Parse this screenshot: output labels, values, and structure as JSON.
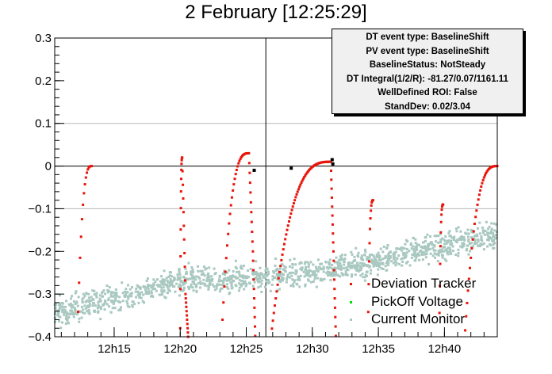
{
  "title": "2 February [12:25:29]",
  "stats": [
    "DT event type: BaselineShift",
    "PV event type: BaselineShift",
    "BaselineStatus: NotSteady",
    "DT Integral(1/2/R): -81.27/0.07/1161.11",
    "WellDefined ROI: False",
    "StandDev: 0.02/3.04"
  ],
  "chart_data": {
    "type": "scatter",
    "title": "2 February [12:25:29]",
    "xlabel": "",
    "ylabel": "",
    "x_unit": "minutes",
    "xlim": [
      10.5,
      44.0
    ],
    "ylim": [
      -0.4,
      0.3
    ],
    "x_ticks": [
      "12h15",
      "12h20",
      "12h25",
      "12h30",
      "12h35",
      "12h40"
    ],
    "x_tick_minutes": [
      15,
      20,
      25,
      30,
      35,
      40
    ],
    "y_ticks": [
      -0.4,
      -0.3,
      -0.2,
      -0.1,
      0,
      0.1,
      0.2,
      0.3
    ],
    "y_tick_labels": [
      "−0.4",
      "−0.3",
      "−0.2",
      "−0.1",
      "0",
      "0.1",
      "0.2",
      "0.3"
    ],
    "grid_lines_y": [
      -0.1,
      0.1
    ],
    "reference_lines": {
      "y": 0,
      "x": 26.48
    },
    "legend_position": "bottom-right",
    "series": [
      {
        "name": "Deviation Tracker",
        "color": "#e8140a",
        "segments": [
          {
            "x_start": 12.2,
            "x_end": 13.3,
            "y_start": -0.42,
            "y_end": 0.0,
            "tail": []
          },
          {
            "x_start": 20.0,
            "x_end": 20.15,
            "y_start": -0.38,
            "y_end": 0.02,
            "tail": [
              [
                20.4,
                -0.3
              ],
              [
                20.6,
                -0.4
              ]
            ]
          },
          {
            "x_start": 23.2,
            "x_end": 25.2,
            "y_start": -0.36,
            "y_end": 0.03,
            "tail": [
              [
                25.5,
                -0.2
              ],
              [
                25.7,
                -0.42
              ]
            ]
          },
          {
            "x_start": 26.8,
            "x_end": 31.4,
            "y_start": -0.42,
            "y_end": 0.01,
            "tail": [
              [
                31.6,
                -0.2
              ],
              [
                31.8,
                -0.42
              ]
            ]
          },
          {
            "x_start": 34.2,
            "x_end": 34.6,
            "y_start": -0.42,
            "y_end": -0.08,
            "tail": []
          },
          {
            "x_start": 39.6,
            "x_end": 39.9,
            "y_start": -0.42,
            "y_end": -0.09,
            "tail": []
          },
          {
            "x_start": 41.5,
            "x_end": 44.0,
            "y_start": -0.42,
            "y_end": 0.0,
            "tail": []
          }
        ]
      },
      {
        "name": "PickOff Voltage",
        "color": "#00dd00",
        "points": []
      },
      {
        "name": "Current Monitor",
        "color": "#a8c8c0",
        "trend": [
          [
            10.5,
            -0.345
          ],
          [
            20.0,
            -0.27
          ],
          [
            30.0,
            -0.25
          ],
          [
            35.0,
            -0.22
          ],
          [
            44.0,
            -0.16
          ]
        ],
        "spread": 0.03
      }
    ],
    "markers": [
      {
        "x": 25.6,
        "y": -0.01,
        "color": "#000000"
      },
      {
        "x": 28.4,
        "y": -0.005,
        "color": "#000000"
      },
      {
        "x": 31.5,
        "y": 0.015,
        "color": "#000000"
      },
      {
        "x": 31.55,
        "y": 0.005,
        "color": "#000000"
      }
    ]
  }
}
